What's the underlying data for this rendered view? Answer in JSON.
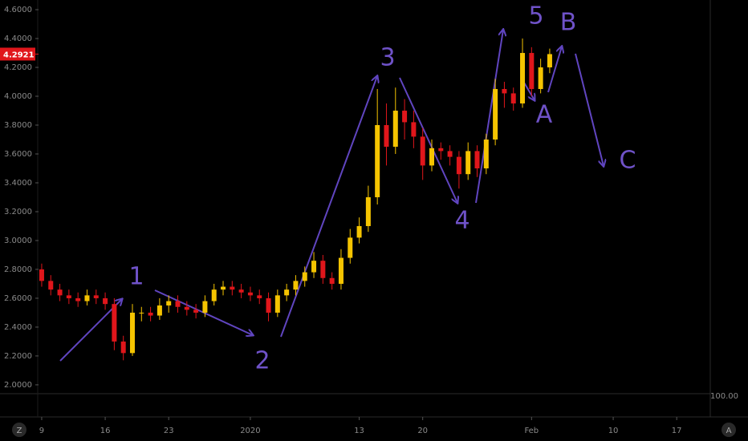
{
  "chart_data": {
    "type": "candlestick",
    "x": [
      0,
      1,
      2,
      3,
      4,
      5,
      6,
      7,
      8,
      9,
      10,
      11,
      12,
      13,
      14,
      15,
      16,
      17,
      18,
      19,
      20,
      21,
      22,
      23,
      24,
      25,
      26,
      27,
      28,
      29,
      30,
      31,
      32,
      33,
      34,
      35,
      36,
      37,
      38,
      39,
      40,
      41,
      42,
      43,
      44,
      45,
      46,
      47,
      48,
      49,
      50,
      51,
      52,
      53,
      54,
      55,
      56
    ],
    "open": [
      2.8,
      2.72,
      2.66,
      2.62,
      2.6,
      2.58,
      2.62,
      2.6,
      2.56,
      2.3,
      2.22,
      2.5,
      2.5,
      2.48,
      2.55,
      2.58,
      2.54,
      2.52,
      2.5,
      2.58,
      2.66,
      2.68,
      2.66,
      2.64,
      2.62,
      2.6,
      2.5,
      2.62,
      2.66,
      2.72,
      2.78,
      2.86,
      2.74,
      2.7,
      2.88,
      3.02,
      3.1,
      3.3,
      3.8,
      3.65,
      3.9,
      3.82,
      3.72,
      3.52,
      3.64,
      3.62,
      3.58,
      3.46,
      3.62,
      3.5,
      3.7,
      4.05,
      4.02,
      3.95,
      4.3,
      4.05,
      4.2
    ],
    "high": [
      2.84,
      2.76,
      2.7,
      2.66,
      2.64,
      2.66,
      2.66,
      2.64,
      2.6,
      2.34,
      2.56,
      2.54,
      2.54,
      2.6,
      2.62,
      2.62,
      2.58,
      2.56,
      2.62,
      2.7,
      2.72,
      2.72,
      2.7,
      2.68,
      2.66,
      2.64,
      2.66,
      2.7,
      2.76,
      2.82,
      2.92,
      2.9,
      2.78,
      2.94,
      3.08,
      3.16,
      3.38,
      4.05,
      3.95,
      4.06,
      3.98,
      3.9,
      3.78,
      3.7,
      3.68,
      3.66,
      3.62,
      3.68,
      3.66,
      3.74,
      4.12,
      4.1,
      4.06,
      4.4,
      4.34,
      4.26,
      4.33
    ],
    "low": [
      2.68,
      2.62,
      2.58,
      2.56,
      2.54,
      2.55,
      2.56,
      2.52,
      2.24,
      2.17,
      2.2,
      2.44,
      2.44,
      2.45,
      2.5,
      2.5,
      2.48,
      2.46,
      2.47,
      2.55,
      2.62,
      2.62,
      2.6,
      2.58,
      2.56,
      2.44,
      2.47,
      2.58,
      2.62,
      2.68,
      2.74,
      2.7,
      2.66,
      2.66,
      2.84,
      2.98,
      3.06,
      3.25,
      3.52,
      3.6,
      3.7,
      3.64,
      3.42,
      3.48,
      3.56,
      3.52,
      3.36,
      3.42,
      3.44,
      3.46,
      3.66,
      3.92,
      3.9,
      3.92,
      4.0,
      4.02,
      4.16
    ],
    "close": [
      2.72,
      2.66,
      2.62,
      2.6,
      2.58,
      2.62,
      2.6,
      2.56,
      2.3,
      2.22,
      2.5,
      2.5,
      2.48,
      2.55,
      2.58,
      2.54,
      2.52,
      2.5,
      2.58,
      2.66,
      2.68,
      2.66,
      2.64,
      2.62,
      2.6,
      2.5,
      2.62,
      2.66,
      2.72,
      2.78,
      2.86,
      2.74,
      2.7,
      2.88,
      3.02,
      3.1,
      3.3,
      3.8,
      3.65,
      3.9,
      3.82,
      3.72,
      3.52,
      3.64,
      3.62,
      3.58,
      3.46,
      3.62,
      3.5,
      3.7,
      4.05,
      4.02,
      3.95,
      4.3,
      4.05,
      4.2,
      4.2921
    ],
    "up_color": "#f5c400",
    "down_color": "#e0161b",
    "xlim": [
      -0.35,
      73.7
    ],
    "xticks": [
      {
        "value": 0,
        "label": "9"
      },
      {
        "value": 7,
        "label": "16"
      },
      {
        "value": 14,
        "label": "23"
      },
      {
        "value": 23,
        "label": "2020"
      },
      {
        "value": 35,
        "label": "13"
      },
      {
        "value": 42,
        "label": "20"
      },
      {
        "value": 54,
        "label": "Feb"
      },
      {
        "value": 63,
        "label": "10"
      },
      {
        "value": 70,
        "label": "17"
      }
    ],
    "ylim": [
      1.944,
      4.667
    ],
    "yticks": [
      {
        "value": 2,
        "label": "2.0000"
      },
      {
        "value": 2.2,
        "label": "2.2000"
      },
      {
        "value": 2.4,
        "label": "2.4000"
      },
      {
        "value": 2.6,
        "label": "2.6000"
      },
      {
        "value": 2.8,
        "label": "2.8000"
      },
      {
        "value": 3,
        "label": "3.0000"
      },
      {
        "value": 3.2,
        "label": "3.2000"
      },
      {
        "value": 3.4,
        "label": "3.4000"
      },
      {
        "value": 3.6,
        "label": "3.6000"
      },
      {
        "value": 3.8,
        "label": "3.8000"
      },
      {
        "value": 4,
        "label": "4.0000"
      },
      {
        "value": 4.2,
        "label": "4.2000"
      },
      {
        "value": 4.4,
        "label": "4.4000"
      },
      {
        "value": 4.6,
        "label": "4.6000"
      }
    ],
    "last_price": 4.2921,
    "last_price_color": "#e0161b",
    "annotations": [
      "1",
      "2",
      "3",
      "4",
      "5",
      "B",
      "A",
      "C"
    ],
    "lower_pane_label": "100.00"
  },
  "toolbar": {
    "left_button": "Z",
    "right_button": "A"
  }
}
